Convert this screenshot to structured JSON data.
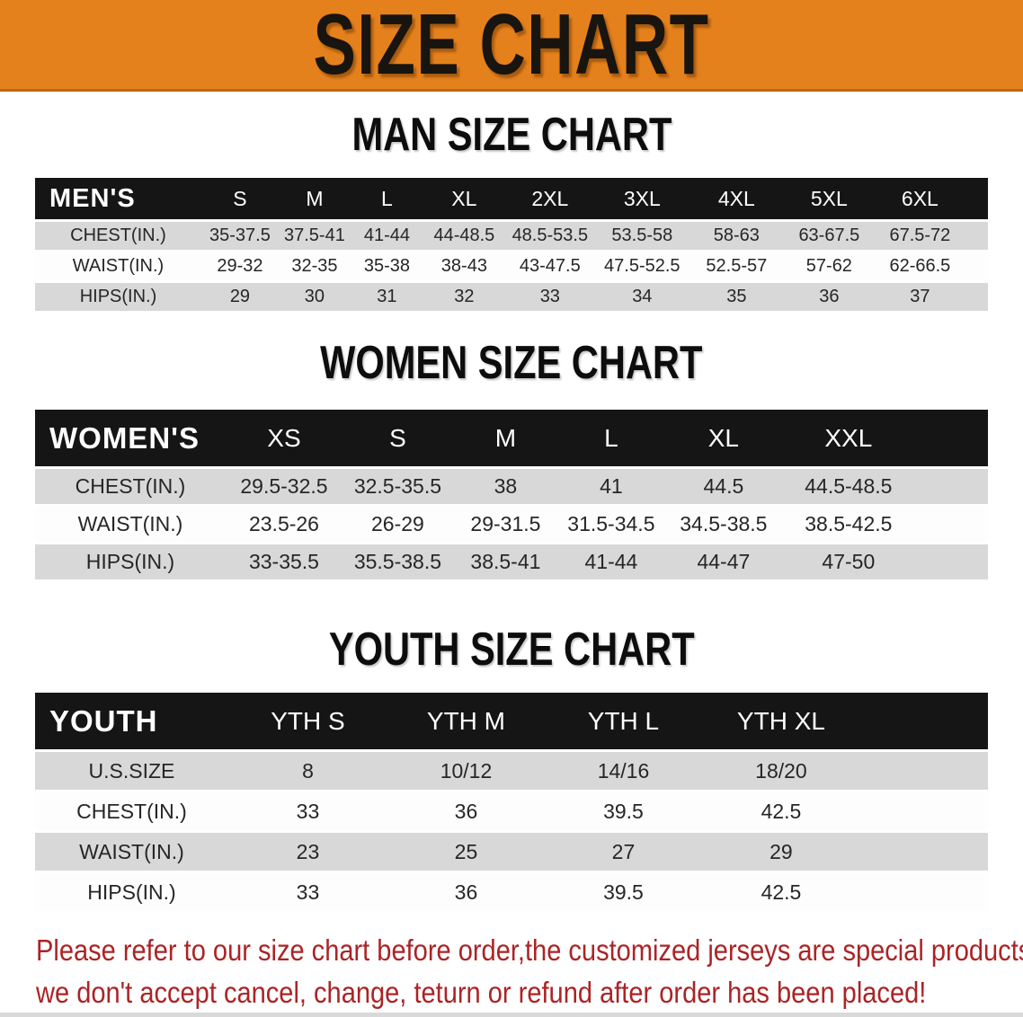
{
  "banner": {
    "title": "SIZE CHART",
    "bg_color": "#e5811c",
    "text_color": "#181410"
  },
  "colors": {
    "header_bar": "#151515",
    "stripe_gray": "#d8d8d8",
    "footnote_red": "#ab2426"
  },
  "sections": [
    {
      "title": "MAN SIZE CHART",
      "table": {
        "id": "men",
        "header_label": "MEN'S",
        "columns": [
          "S",
          "M",
          "L",
          "XL",
          "2XL",
          "3XL",
          "4XL",
          "5XL",
          "6XL"
        ],
        "rows": [
          {
            "label": "CHEST(IN.)",
            "values": [
              "35-37.5",
              "37.5-41",
              "41-44",
              "44-48.5",
              "48.5-53.5",
              "53.5-58",
              "58-63",
              "63-67.5",
              "67.5-72"
            ]
          },
          {
            "label": "WAIST(IN.)",
            "values": [
              "29-32",
              "32-35",
              "35-38",
              "38-43",
              "43-47.5",
              "47.5-52.5",
              "52.5-57",
              "57-62",
              "62-66.5"
            ]
          },
          {
            "label": "HIPS(IN.)",
            "values": [
              "29",
              "30",
              "31",
              "32",
              "33",
              "34",
              "35",
              "36",
              "37"
            ]
          }
        ]
      }
    },
    {
      "title": "WOMEN SIZE CHART",
      "table": {
        "id": "women",
        "header_label": "WOMEN'S",
        "columns": [
          "XS",
          "S",
          "M",
          "L",
          "XL",
          "XXL"
        ],
        "rows": [
          {
            "label": "CHEST(IN.)",
            "values": [
              "29.5-32.5",
              "32.5-35.5",
              "38",
              "41",
              "44.5",
              "44.5-48.5"
            ]
          },
          {
            "label": "WAIST(IN.)",
            "values": [
              "23.5-26",
              "26-29",
              "29-31.5",
              "31.5-34.5",
              "34.5-38.5",
              "38.5-42.5"
            ]
          },
          {
            "label": "HIPS(IN.)",
            "values": [
              "33-35.5",
              "35.5-38.5",
              "38.5-41",
              "41-44",
              "44-47",
              "47-50"
            ]
          }
        ]
      }
    },
    {
      "title": "YOUTH SIZE CHART",
      "table": {
        "id": "youth",
        "header_label": "YOUTH",
        "columns": [
          "YTH S",
          "YTH M",
          "YTH L",
          "YTH XL"
        ],
        "rows": [
          {
            "label": "U.S.SIZE",
            "values": [
              "8",
              "10/12",
              "14/16",
              "18/20"
            ]
          },
          {
            "label": "CHEST(IN.)",
            "values": [
              "33",
              "36",
              "39.5",
              "42.5"
            ]
          },
          {
            "label": "WAIST(IN.)",
            "values": [
              "23",
              "25",
              "27",
              "29"
            ]
          },
          {
            "label": "HIPS(IN.)",
            "values": [
              "33",
              "36",
              "39.5",
              "42.5"
            ]
          }
        ]
      }
    }
  ],
  "footnote": {
    "line1": "Please refer to our size chart before order,the customized jerseys are special products,",
    "line2": "we don't accept cancel, change, teturn or refund after order has been placed!"
  }
}
